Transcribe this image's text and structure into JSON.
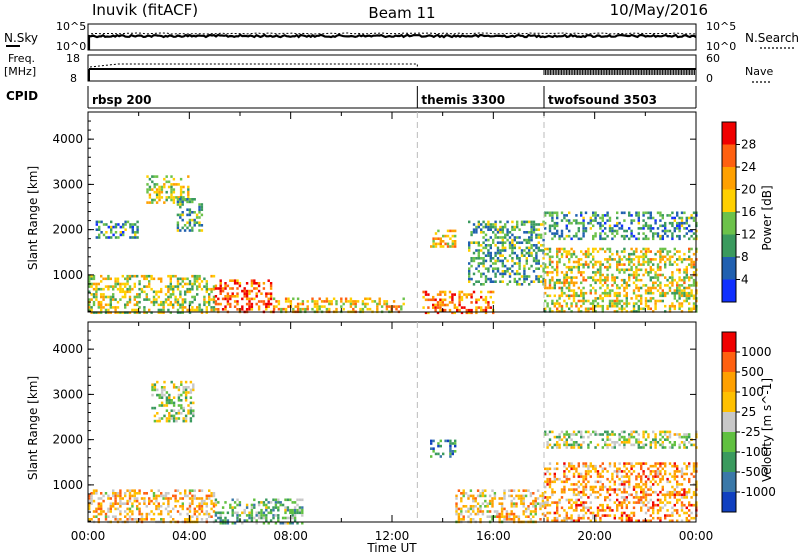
{
  "header": {
    "station": "Inuvik (fitACF)",
    "beam": "Beam 11",
    "date": "10/May/2016"
  },
  "strip_panels": {
    "nsky_label": "N.Sky",
    "nsky_ticks": [
      "10^5",
      "10^0"
    ],
    "nsearch_label": "N.Search",
    "nsearch_ticks": [
      "10^5",
      "10^0"
    ],
    "freq_label_1": "Freq.",
    "freq_label_2": "[MHz]",
    "freq_ticks": [
      "18",
      "8"
    ],
    "nave_label": "Nave",
    "nave_ticks": [
      "60",
      "0"
    ],
    "cpid_label": "CPID",
    "cpid_segments": [
      {
        "name": "rbsp 200",
        "start_hour": 0
      },
      {
        "name": "themis 3300",
        "start_hour": 13
      },
      {
        "name": "twofsound 3503",
        "start_hour": 18
      }
    ]
  },
  "chart_data": [
    {
      "type": "heatmap",
      "panel": "power",
      "ylabel": "Slant Range [km]",
      "xlabel": "",
      "x_range_hours": [
        0,
        24
      ],
      "ylim": [
        180,
        4600
      ],
      "yticks": [
        "1000",
        "2000",
        "3000",
        "4000"
      ],
      "xticks": [
        "00:00",
        "04:00",
        "08:00",
        "12:00",
        "16:00",
        "20:00",
        "00:00"
      ],
      "colorbar": {
        "label": "Power [dB]",
        "ticks": [
          "4",
          "8",
          "12",
          "16",
          "20",
          "24",
          "28"
        ],
        "colors": [
          "#1030ff",
          "#2060b0",
          "#3a9a5e",
          "#6cc24a",
          "#ffd000",
          "#ffa000",
          "#ff6010",
          "#f00000"
        ]
      },
      "regions": [
        {
          "h0": 0.0,
          "h1": 5.0,
          "r0": 180,
          "r1": 1000,
          "level": 0.5
        },
        {
          "h0": 0.3,
          "h1": 2.0,
          "r0": 1800,
          "r1": 2200,
          "level": 0.3
        },
        {
          "h0": 2.3,
          "h1": 4.0,
          "r0": 2600,
          "r1": 3200,
          "level": 0.5
        },
        {
          "h0": 3.5,
          "h1": 4.5,
          "r0": 2000,
          "r1": 2700,
          "level": 0.35
        },
        {
          "h0": 5.0,
          "h1": 7.3,
          "r0": 180,
          "r1": 900,
          "level": 0.8
        },
        {
          "h0": 7.3,
          "h1": 12.5,
          "r0": 180,
          "r1": 500,
          "level": 0.6
        },
        {
          "h0": 13.2,
          "h1": 16.0,
          "r0": 180,
          "r1": 650,
          "level": 0.75
        },
        {
          "h0": 13.5,
          "h1": 14.5,
          "r0": 1600,
          "r1": 2000,
          "level": 0.6
        },
        {
          "h0": 15.0,
          "h1": 18.0,
          "r0": 800,
          "r1": 2200,
          "level": 0.35
        },
        {
          "h0": 18.0,
          "h1": 24.0,
          "r0": 180,
          "r1": 1600,
          "level": 0.55
        },
        {
          "h0": 18.0,
          "h1": 24.0,
          "r0": 1800,
          "r1": 2400,
          "level": 0.3
        }
      ]
    },
    {
      "type": "heatmap",
      "panel": "velocity",
      "ylabel": "Slant Range [km]",
      "xlabel": "Time UT",
      "x_range_hours": [
        0,
        24
      ],
      "ylim": [
        180,
        4600
      ],
      "yticks": [
        "1000",
        "2000",
        "3000",
        "4000"
      ],
      "xticks": [
        "00:00",
        "04:00",
        "08:00",
        "12:00",
        "16:00",
        "20:00",
        "00:00"
      ],
      "colorbar": {
        "label": "Velocity [m s^-1]",
        "ticks": [
          "1000",
          "500",
          "100",
          "25",
          "-25",
          "-100",
          "-500",
          "-1000"
        ],
        "colors": [
          "#1040c0",
          "#3a78a8",
          "#3a9a5e",
          "#60c040",
          "#c8c8c8",
          "#ffc000",
          "#ffa000",
          "#ff6010",
          "#f00000"
        ]
      },
      "regions": [
        {
          "h0": 0.0,
          "h1": 5.0,
          "r0": 180,
          "r1": 900,
          "level": 0.65
        },
        {
          "h0": 2.5,
          "h1": 4.2,
          "r0": 2400,
          "r1": 3300,
          "level": 0.45
        },
        {
          "h0": 5.0,
          "h1": 8.5,
          "r0": 180,
          "r1": 700,
          "level": 0.35
        },
        {
          "h0": 13.5,
          "h1": 14.5,
          "r0": 1600,
          "r1": 2000,
          "level": 0.25
        },
        {
          "h0": 14.5,
          "h1": 18.0,
          "r0": 180,
          "r1": 900,
          "level": 0.6
        },
        {
          "h0": 18.0,
          "h1": 24.0,
          "r0": 180,
          "r1": 1500,
          "level": 0.72
        },
        {
          "h0": 18.0,
          "h1": 24.0,
          "r0": 1800,
          "r1": 2200,
          "level": 0.45
        }
      ]
    }
  ]
}
